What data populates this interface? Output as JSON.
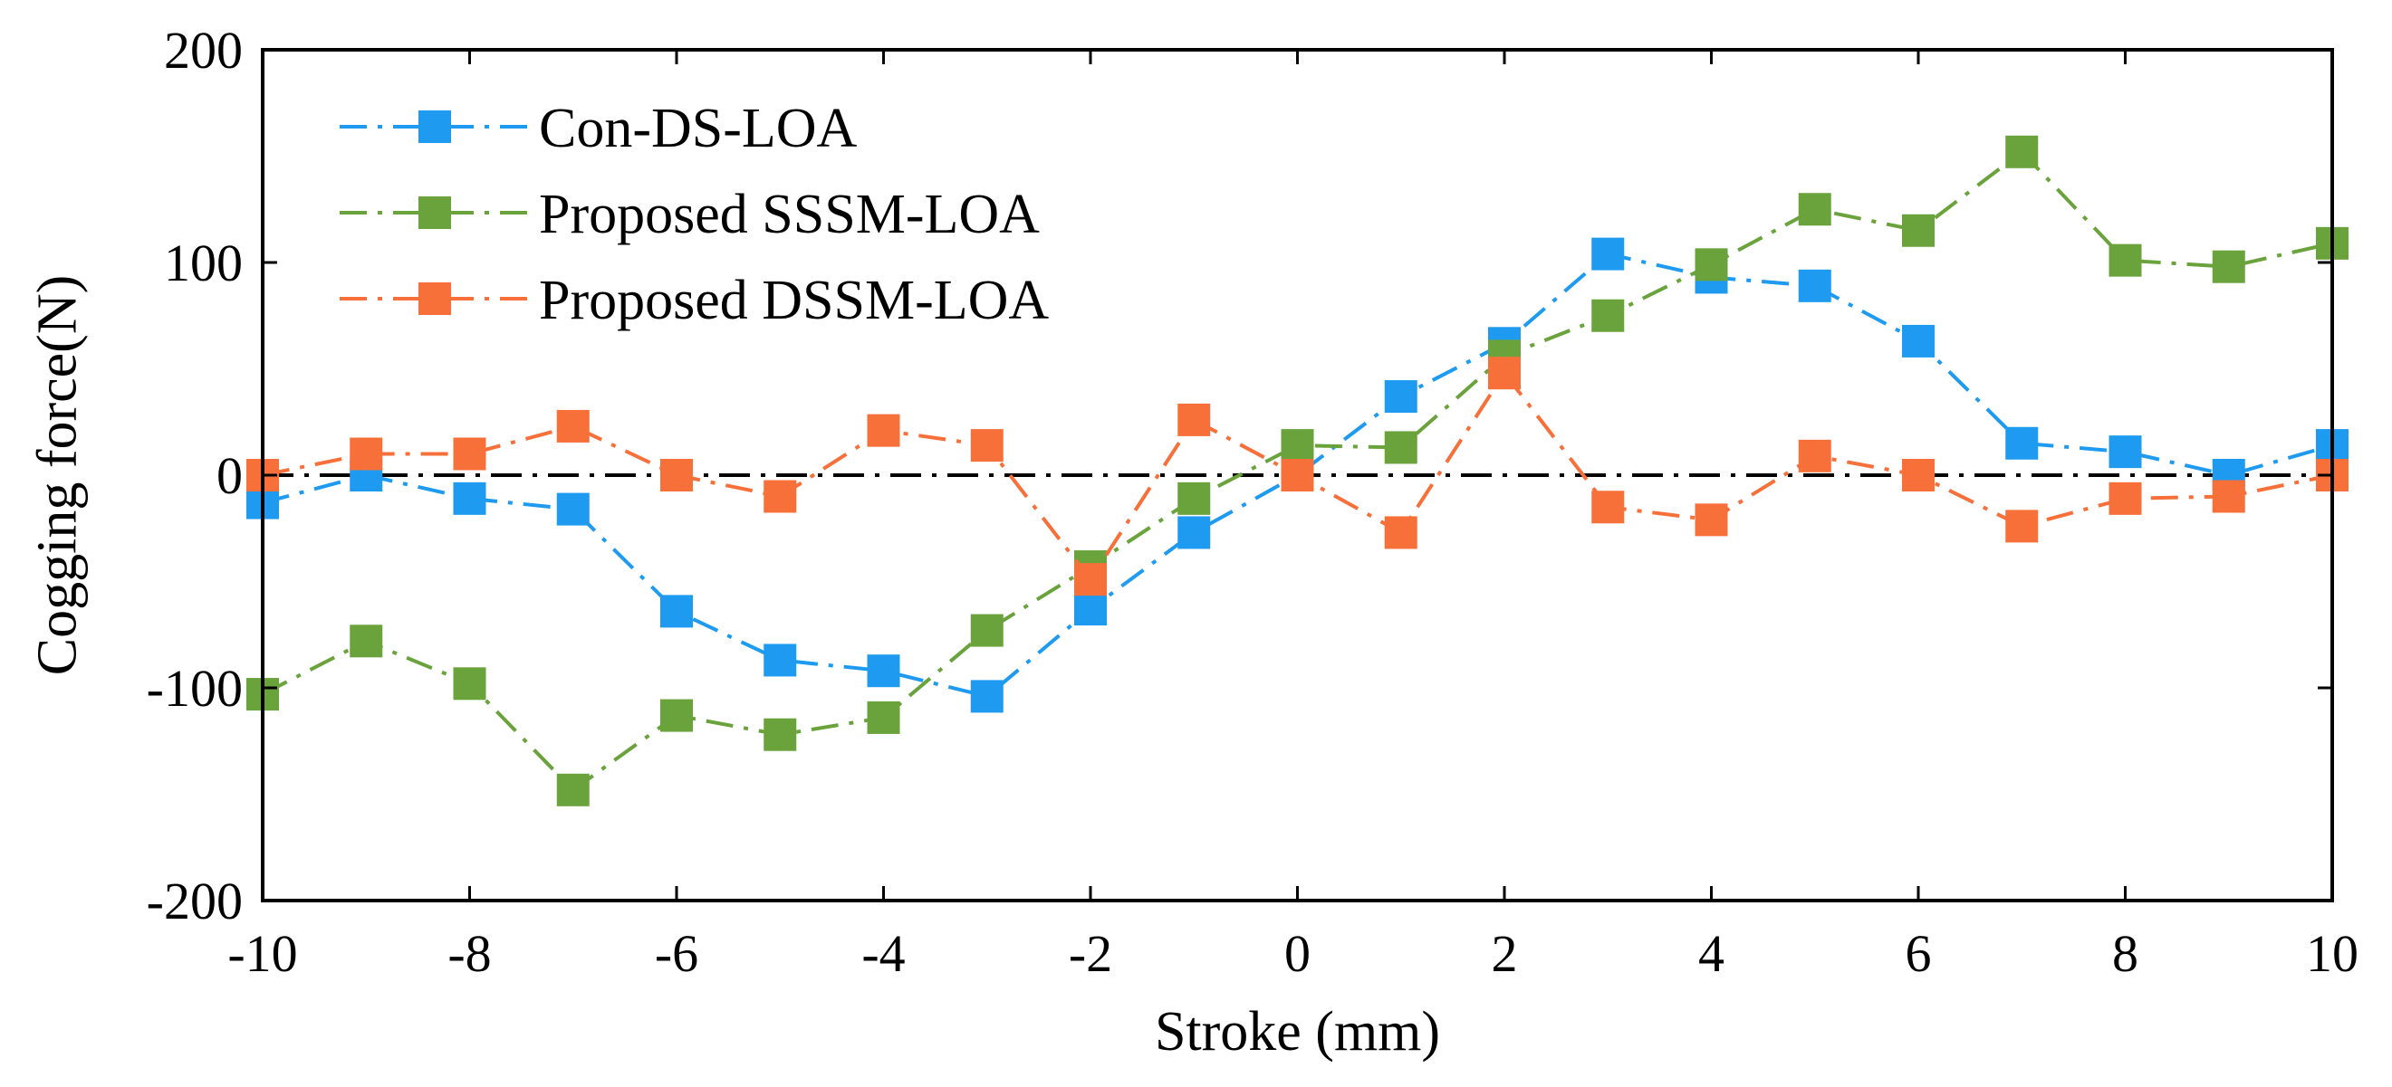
{
  "chart_data": {
    "type": "line",
    "title": "",
    "xlabel": "Stroke (mm)",
    "ylabel": "Cogging force(N)",
    "xlim": [
      -10,
      10
    ],
    "ylim": [
      -200,
      200
    ],
    "xticks": [
      -10,
      -8,
      -6,
      -4,
      -2,
      0,
      2,
      4,
      6,
      8,
      10
    ],
    "yticks": [
      -200,
      -100,
      0,
      100,
      200
    ],
    "x_tick_labels": [
      "-10",
      "-8",
      "-6",
      "-4",
      "-2",
      "0",
      "2",
      "4",
      "6",
      "8",
      "10"
    ],
    "y_tick_labels": [
      "-200",
      "-100",
      "0",
      "100",
      "200"
    ],
    "grid": false,
    "legend_position": "top-left",
    "x": [
      -10,
      -9,
      -8,
      -7,
      -6,
      -5,
      -4,
      -3,
      -2,
      -1,
      0,
      1,
      2,
      3,
      4,
      5,
      6,
      7,
      8,
      9,
      10
    ],
    "series": [
      {
        "name": "Con-DS-LOA",
        "color": "#1E9BF0",
        "values": [
          -13,
          0,
          -11,
          -16,
          -64,
          -87,
          -92,
          -104,
          -63,
          -27,
          0,
          37,
          62,
          104,
          93,
          89,
          63,
          15,
          11,
          0,
          14
        ]
      },
      {
        "name": "Proposed SSSM-LOA",
        "color": "#6AA33C",
        "values": [
          -103,
          -78,
          -98,
          -148,
          -113,
          -122,
          -114,
          -73,
          -43,
          -11,
          14,
          13,
          56,
          75,
          99,
          125,
          115,
          152,
          101,
          98,
          109
        ]
      },
      {
        "name": "Proposed DSSM-LOA",
        "color": "#F7703A",
        "values": [
          0,
          10,
          10,
          23,
          0,
          -10,
          21,
          14,
          -49,
          26,
          0,
          -27,
          48,
          -15,
          -21,
          9,
          0,
          -24,
          -11,
          -10,
          0
        ]
      }
    ],
    "reference_line": {
      "y": 0,
      "color": "#000000"
    }
  }
}
